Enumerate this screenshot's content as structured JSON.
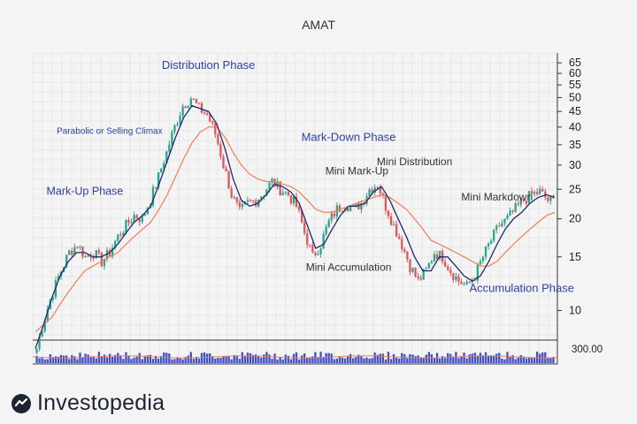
{
  "brand": {
    "name": "Investopedia",
    "logo_icon": "investopedia-logo-icon",
    "color": "#1d2433"
  },
  "colors": {
    "up": "#2ca58d",
    "down": "#e0565b",
    "ma_short": "#1f2a6b",
    "ma_long": "#ee7d5a",
    "volume": "#3f4fc4",
    "annotation": "#2f3fa8",
    "annotation_dark": "#333333"
  },
  "chart_data": {
    "type": "candlestick",
    "title": "AMAT",
    "y_scale": "log",
    "ylim": [
      8,
      70
    ],
    "y_ticks": [
      10,
      15,
      20,
      25,
      30,
      35,
      40,
      45,
      50,
      55,
      60,
      65
    ],
    "grid": true,
    "series": [
      {
        "name": "",
        "kind": "price",
        "values": [
          7.5,
          9.5,
          11.5,
          13.5,
          15.5,
          16.5,
          15,
          15.5,
          14.5,
          15.5,
          17.5,
          19,
          20.5,
          20,
          23,
          27.5,
          33,
          40,
          47,
          50,
          46,
          44,
          38,
          30,
          24,
          21,
          22.5,
          23,
          24.5,
          26.5,
          25,
          24,
          22,
          18,
          15,
          16.5,
          19.5,
          21.5,
          22.5,
          21.5,
          22.5,
          25,
          26,
          22,
          19,
          16.5,
          14,
          12.5,
          13.5,
          15.5,
          15,
          13.5,
          12.5,
          12,
          13,
          15,
          17,
          19,
          20,
          21.5,
          23,
          24,
          24.5,
          23
        ]
      },
      {
        "name": "",
        "kind": "moving-average-short",
        "values": [
          7.5,
          9,
          11,
          13,
          14.5,
          15.5,
          15.5,
          15,
          15,
          15.5,
          16.5,
          18,
          19.5,
          20.5,
          22,
          26,
          31,
          37,
          43,
          47,
          46,
          45,
          41,
          34,
          27,
          23,
          22,
          22.5,
          24,
          26,
          25.5,
          24.5,
          22.5,
          19,
          16,
          16.5,
          18.5,
          20.5,
          22,
          22,
          22.5,
          24.5,
          25.5,
          23,
          20,
          17.5,
          15,
          13.5,
          13.5,
          15,
          15,
          14,
          13,
          12.5,
          13,
          14.5,
          16.5,
          18.5,
          20,
          21,
          22.5,
          23.5,
          24,
          23.5
        ]
      },
      {
        "name": "",
        "kind": "moving-average-long",
        "values": [
          8.5,
          9,
          9.5,
          10.5,
          11.5,
          12.5,
          13.5,
          14,
          14.5,
          15,
          15.5,
          16.5,
          17.5,
          18.5,
          19.5,
          21.5,
          24,
          27.5,
          31.5,
          35.5,
          38.5,
          40,
          40,
          37,
          33,
          30,
          28,
          27,
          26.5,
          26.5,
          26,
          25.5,
          24.5,
          23,
          21.5,
          21,
          21,
          21.5,
          22,
          22.5,
          23,
          23.5,
          24,
          23.5,
          22.5,
          21.5,
          20,
          18.5,
          17,
          16.5,
          16,
          15.5,
          15,
          14.5,
          14,
          14,
          14.5,
          15.5,
          16.5,
          17.5,
          18.5,
          19.5,
          20.5,
          21
        ]
      }
    ],
    "volume_label": "300.00",
    "annotations": [
      {
        "text": "Distribution Phase",
        "at": [
          21,
          62
        ],
        "color": "annotation",
        "size": 13
      },
      {
        "text": "Parabolic or Selling Climax",
        "at": [
          9,
          38
        ],
        "color": "annotation",
        "size": 10
      },
      {
        "text": "Mark-Up Phase",
        "at": [
          6,
          24
        ],
        "color": "annotation",
        "size": 12.5
      },
      {
        "text": "Mark-Down Phase",
        "at": [
          38,
          36
        ],
        "color": "annotation",
        "size": 13
      },
      {
        "text": "Mini Mark-Up",
        "at": [
          39,
          28
        ],
        "color": "annotation_dark",
        "size": 12
      },
      {
        "text": "Mini Distribution",
        "at": [
          46,
          30
        ],
        "color": "annotation_dark",
        "size": 12
      },
      {
        "text": "Mini Markdown",
        "at": [
          56,
          23
        ],
        "color": "annotation_dark",
        "size": 12
      },
      {
        "text": "Mini Accumulation",
        "at": [
          38,
          13.5
        ],
        "color": "annotation_dark",
        "size": 12
      },
      {
        "text": "Accumulation Phase",
        "at": [
          59,
          11.5
        ],
        "color": "annotation",
        "size": 13
      }
    ]
  }
}
